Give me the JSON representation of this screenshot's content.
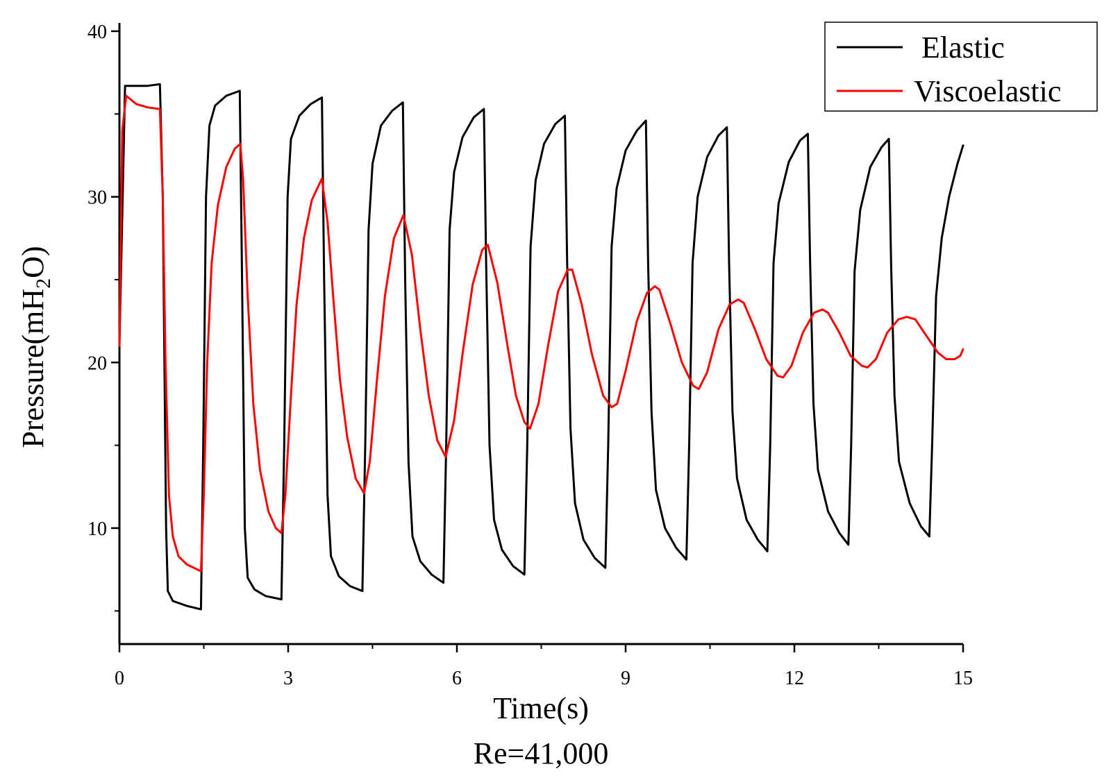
{
  "chart_data": {
    "type": "line",
    "xlabel": "Time(s)",
    "ylabel_main": "Pressure(mH",
    "ylabel_sub": "2",
    "ylabel_end": "O)",
    "caption": "Re=41,000",
    "xlim": [
      0,
      15
    ],
    "ylim": [
      3,
      40.5
    ],
    "x_ticks": [
      0,
      3,
      6,
      9,
      12,
      15
    ],
    "x_tick_labels": [
      "0",
      "3",
      "6",
      "9",
      "12",
      "15"
    ],
    "y_ticks": [
      10,
      20,
      30,
      40
    ],
    "y_tick_labels": [
      "10",
      "20",
      "30",
      "40"
    ],
    "legend_position": "top-right",
    "series": [
      {
        "name": "Elastic",
        "color": "#000000",
        "points": [
          [
            0.0,
            21.0
          ],
          [
            0.1,
            36.7
          ],
          [
            0.3,
            36.7
          ],
          [
            0.5,
            36.7
          ],
          [
            0.72,
            36.8
          ],
          [
            0.77,
            30.0
          ],
          [
            0.8,
            20.0
          ],
          [
            0.83,
            10.0
          ],
          [
            0.86,
            6.2
          ],
          [
            0.95,
            5.6
          ],
          [
            1.2,
            5.3
          ],
          [
            1.45,
            5.1
          ],
          [
            1.49,
            15.0
          ],
          [
            1.54,
            30.0
          ],
          [
            1.6,
            34.3
          ],
          [
            1.7,
            35.5
          ],
          [
            1.9,
            36.1
          ],
          [
            2.14,
            36.4
          ],
          [
            2.18,
            25.0
          ],
          [
            2.23,
            10.0
          ],
          [
            2.28,
            7.0
          ],
          [
            2.4,
            6.3
          ],
          [
            2.6,
            5.9
          ],
          [
            2.88,
            5.7
          ],
          [
            2.93,
            15.0
          ],
          [
            2.99,
            30.0
          ],
          [
            3.05,
            33.5
          ],
          [
            3.2,
            34.9
          ],
          [
            3.4,
            35.6
          ],
          [
            3.6,
            36.0
          ],
          [
            3.64,
            25.0
          ],
          [
            3.7,
            12.0
          ],
          [
            3.76,
            8.3
          ],
          [
            3.9,
            7.1
          ],
          [
            4.1,
            6.5
          ],
          [
            4.32,
            6.2
          ],
          [
            4.37,
            15.0
          ],
          [
            4.43,
            28.0
          ],
          [
            4.5,
            32.0
          ],
          [
            4.65,
            34.3
          ],
          [
            4.85,
            35.2
          ],
          [
            5.04,
            35.7
          ],
          [
            5.08,
            25.0
          ],
          [
            5.14,
            14.0
          ],
          [
            5.21,
            9.5
          ],
          [
            5.35,
            8.0
          ],
          [
            5.55,
            7.2
          ],
          [
            5.76,
            6.7
          ],
          [
            5.81,
            15.0
          ],
          [
            5.87,
            28.0
          ],
          [
            5.95,
            31.5
          ],
          [
            6.1,
            33.6
          ],
          [
            6.3,
            34.8
          ],
          [
            6.48,
            35.3
          ],
          [
            6.52,
            26.0
          ],
          [
            6.58,
            15.0
          ],
          [
            6.66,
            10.5
          ],
          [
            6.8,
            8.7
          ],
          [
            7.0,
            7.7
          ],
          [
            7.2,
            7.2
          ],
          [
            7.25,
            15.0
          ],
          [
            7.31,
            27.0
          ],
          [
            7.4,
            31.0
          ],
          [
            7.55,
            33.2
          ],
          [
            7.75,
            34.4
          ],
          [
            7.92,
            34.9
          ],
          [
            7.96,
            26.0
          ],
          [
            8.02,
            16.0
          ],
          [
            8.1,
            11.5
          ],
          [
            8.25,
            9.3
          ],
          [
            8.45,
            8.2
          ],
          [
            8.64,
            7.6
          ],
          [
            8.69,
            15.0
          ],
          [
            8.75,
            27.0
          ],
          [
            8.84,
            30.5
          ],
          [
            9.0,
            32.8
          ],
          [
            9.2,
            34.0
          ],
          [
            9.36,
            34.6
          ],
          [
            9.4,
            26.0
          ],
          [
            9.46,
            17.0
          ],
          [
            9.54,
            12.3
          ],
          [
            9.7,
            10.0
          ],
          [
            9.9,
            8.8
          ],
          [
            10.08,
            8.1
          ],
          [
            10.13,
            15.0
          ],
          [
            10.19,
            26.0
          ],
          [
            10.28,
            30.0
          ],
          [
            10.45,
            32.4
          ],
          [
            10.65,
            33.7
          ],
          [
            10.8,
            34.2
          ],
          [
            10.84,
            26.0
          ],
          [
            10.9,
            17.0
          ],
          [
            10.98,
            13.0
          ],
          [
            11.15,
            10.5
          ],
          [
            11.35,
            9.3
          ],
          [
            11.52,
            8.6
          ],
          [
            11.57,
            15.0
          ],
          [
            11.63,
            26.0
          ],
          [
            11.72,
            29.6
          ],
          [
            11.9,
            32.1
          ],
          [
            12.1,
            33.4
          ],
          [
            12.24,
            33.8
          ],
          [
            12.28,
            26.0
          ],
          [
            12.34,
            17.5
          ],
          [
            12.42,
            13.5
          ],
          [
            12.6,
            11.0
          ],
          [
            12.8,
            9.7
          ],
          [
            12.96,
            9.0
          ],
          [
            13.01,
            15.0
          ],
          [
            13.07,
            25.5
          ],
          [
            13.17,
            29.2
          ],
          [
            13.35,
            31.8
          ],
          [
            13.55,
            33.0
          ],
          [
            13.68,
            33.5
          ],
          [
            13.72,
            26.0
          ],
          [
            13.78,
            18.0
          ],
          [
            13.86,
            14.0
          ],
          [
            14.05,
            11.5
          ],
          [
            14.25,
            10.1
          ],
          [
            14.4,
            9.5
          ],
          [
            14.45,
            15.0
          ],
          [
            14.52,
            24.0
          ],
          [
            14.62,
            27.5
          ],
          [
            14.75,
            30.0
          ],
          [
            14.9,
            32.0
          ],
          [
            15.0,
            33.1
          ]
        ]
      },
      {
        "name": "Viscoelastic",
        "color": "#ff0000",
        "points": [
          [
            0.0,
            21.0
          ],
          [
            0.05,
            34.0
          ],
          [
            0.12,
            36.1
          ],
          [
            0.3,
            35.6
          ],
          [
            0.5,
            35.4
          ],
          [
            0.72,
            35.3
          ],
          [
            0.77,
            30.0
          ],
          [
            0.82,
            20.0
          ],
          [
            0.88,
            12.0
          ],
          [
            0.95,
            9.5
          ],
          [
            1.05,
            8.3
          ],
          [
            1.2,
            7.8
          ],
          [
            1.45,
            7.4
          ],
          [
            1.5,
            12.0
          ],
          [
            1.56,
            20.0
          ],
          [
            1.64,
            26.0
          ],
          [
            1.75,
            29.5
          ],
          [
            1.9,
            31.8
          ],
          [
            2.05,
            32.9
          ],
          [
            2.15,
            33.2
          ],
          [
            2.2,
            31.0
          ],
          [
            2.28,
            24.0
          ],
          [
            2.38,
            17.5
          ],
          [
            2.5,
            13.5
          ],
          [
            2.65,
            11.0
          ],
          [
            2.78,
            10.0
          ],
          [
            2.88,
            9.7
          ],
          [
            2.95,
            12.0
          ],
          [
            3.05,
            18.0
          ],
          [
            3.15,
            23.5
          ],
          [
            3.28,
            27.5
          ],
          [
            3.42,
            29.8
          ],
          [
            3.6,
            31.1
          ],
          [
            3.7,
            28.5
          ],
          [
            3.8,
            24.0
          ],
          [
            3.92,
            19.0
          ],
          [
            4.05,
            15.5
          ],
          [
            4.2,
            13.0
          ],
          [
            4.35,
            12.1
          ],
          [
            4.45,
            14.0
          ],
          [
            4.58,
            19.0
          ],
          [
            4.72,
            24.0
          ],
          [
            4.88,
            27.5
          ],
          [
            5.05,
            28.9
          ],
          [
            5.2,
            26.5
          ],
          [
            5.35,
            22.0
          ],
          [
            5.5,
            18.0
          ],
          [
            5.65,
            15.3
          ],
          [
            5.8,
            14.3
          ],
          [
            5.95,
            16.5
          ],
          [
            6.1,
            20.5
          ],
          [
            6.28,
            24.7
          ],
          [
            6.45,
            26.8
          ],
          [
            6.55,
            27.1
          ],
          [
            6.72,
            24.8
          ],
          [
            6.9,
            21.0
          ],
          [
            7.05,
            18.0
          ],
          [
            7.2,
            16.4
          ],
          [
            7.3,
            16.0
          ],
          [
            7.45,
            17.5
          ],
          [
            7.62,
            21.0
          ],
          [
            7.8,
            24.3
          ],
          [
            7.97,
            25.6
          ],
          [
            8.05,
            25.6
          ],
          [
            8.22,
            23.5
          ],
          [
            8.4,
            20.5
          ],
          [
            8.6,
            18.0
          ],
          [
            8.75,
            17.3
          ],
          [
            8.85,
            17.5
          ],
          [
            9.0,
            19.5
          ],
          [
            9.2,
            22.5
          ],
          [
            9.38,
            24.2
          ],
          [
            9.52,
            24.6
          ],
          [
            9.6,
            24.4
          ],
          [
            9.8,
            22.3
          ],
          [
            10.0,
            20.0
          ],
          [
            10.2,
            18.6
          ],
          [
            10.3,
            18.4
          ],
          [
            10.45,
            19.4
          ],
          [
            10.65,
            22.0
          ],
          [
            10.85,
            23.5
          ],
          [
            11.0,
            23.8
          ],
          [
            11.1,
            23.6
          ],
          [
            11.3,
            22.0
          ],
          [
            11.5,
            20.2
          ],
          [
            11.7,
            19.2
          ],
          [
            11.8,
            19.1
          ],
          [
            11.95,
            19.8
          ],
          [
            12.15,
            21.8
          ],
          [
            12.35,
            23.0
          ],
          [
            12.5,
            23.2
          ],
          [
            12.6,
            23.0
          ],
          [
            12.8,
            21.8
          ],
          [
            13.0,
            20.4
          ],
          [
            13.2,
            19.8
          ],
          [
            13.3,
            19.7
          ],
          [
            13.45,
            20.2
          ],
          [
            13.65,
            21.8
          ],
          [
            13.85,
            22.6
          ],
          [
            14.0,
            22.75
          ],
          [
            14.15,
            22.6
          ],
          [
            14.35,
            21.6
          ],
          [
            14.55,
            20.6
          ],
          [
            14.7,
            20.2
          ],
          [
            14.85,
            20.2
          ],
          [
            14.95,
            20.4
          ],
          [
            15.0,
            20.8
          ]
        ]
      }
    ]
  }
}
